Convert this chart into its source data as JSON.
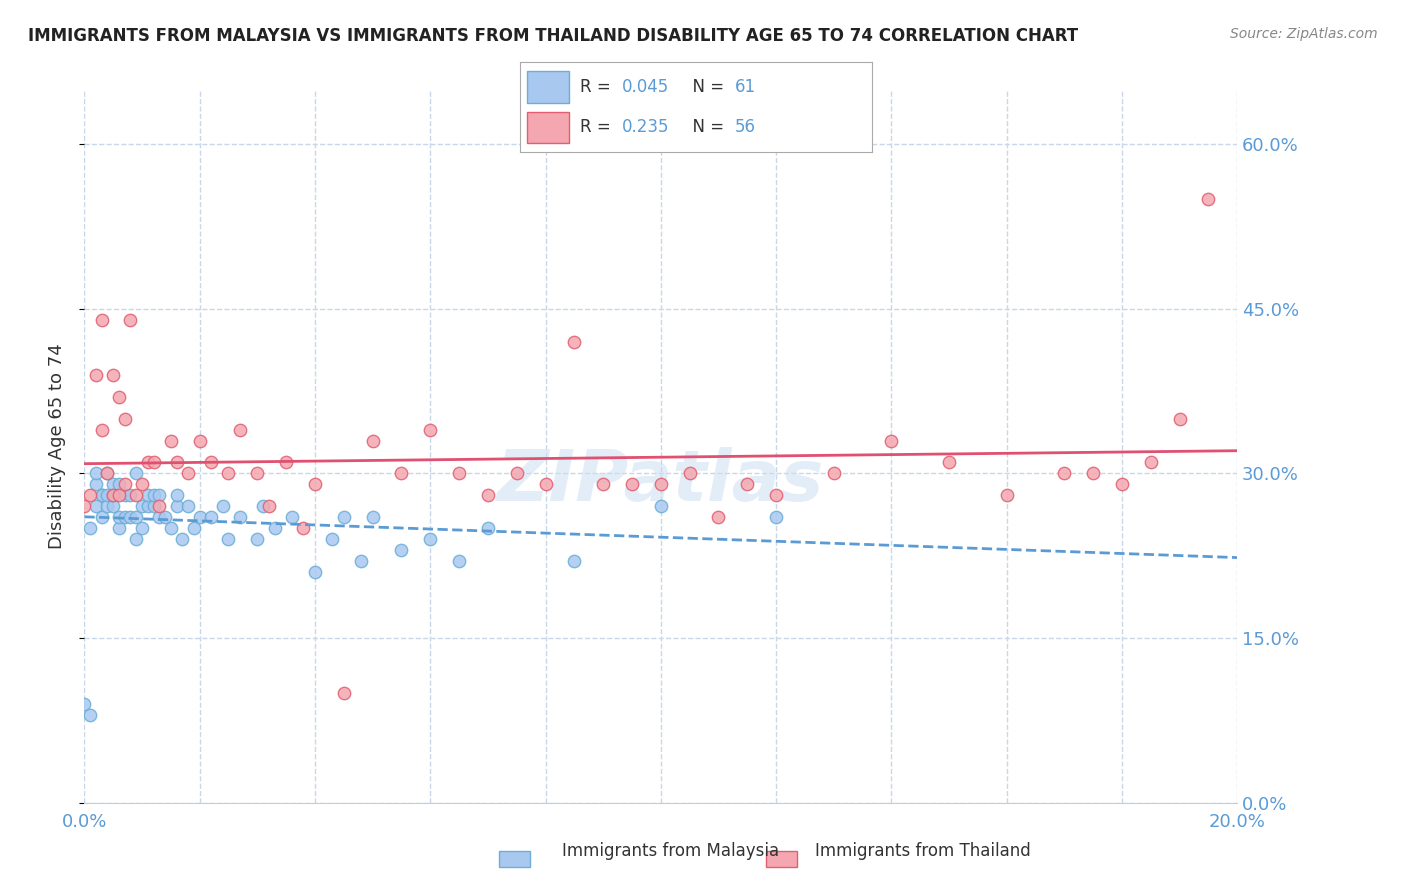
{
  "title": "IMMIGRANTS FROM MALAYSIA VS IMMIGRANTS FROM THAILAND DISABILITY AGE 65 TO 74 CORRELATION CHART",
  "source": "Source: ZipAtlas.com",
  "ylabel": "Disability Age 65 to 74",
  "xlim": [
    0.0,
    0.2
  ],
  "ylim": [
    0.0,
    0.65
  ],
  "xticks": [
    0.0,
    0.02,
    0.04,
    0.06,
    0.08,
    0.1,
    0.12,
    0.14,
    0.16,
    0.18,
    0.2
  ],
  "yticks": [
    0.0,
    0.15,
    0.3,
    0.45,
    0.6
  ],
  "malaysia_color": "#a8c8f0",
  "malaysia_edge": "#6baed6",
  "thailand_color": "#f4a7b0",
  "thailand_edge": "#e06070",
  "malaysia_R": 0.045,
  "malaysia_N": 61,
  "thailand_R": 0.235,
  "thailand_N": 56,
  "trend_malaysia_color": "#5b9bd5",
  "trend_thailand_color": "#e05070",
  "background_color": "#ffffff",
  "grid_color": "#c8d8e8",
  "tick_label_color": "#5b9bd5",
  "malaysia_scatter_x": [
    0.0,
    0.001,
    0.001,
    0.002,
    0.002,
    0.002,
    0.003,
    0.003,
    0.003,
    0.004,
    0.004,
    0.004,
    0.005,
    0.005,
    0.005,
    0.006,
    0.006,
    0.006,
    0.007,
    0.007,
    0.008,
    0.008,
    0.009,
    0.009,
    0.009,
    0.01,
    0.01,
    0.011,
    0.011,
    0.012,
    0.012,
    0.013,
    0.013,
    0.014,
    0.015,
    0.016,
    0.016,
    0.017,
    0.018,
    0.019,
    0.02,
    0.022,
    0.024,
    0.025,
    0.027,
    0.03,
    0.031,
    0.033,
    0.036,
    0.04,
    0.043,
    0.045,
    0.048,
    0.05,
    0.055,
    0.06,
    0.065,
    0.07,
    0.085,
    0.1,
    0.12
  ],
  "malaysia_scatter_y": [
    0.09,
    0.08,
    0.25,
    0.27,
    0.29,
    0.3,
    0.26,
    0.28,
    0.28,
    0.27,
    0.28,
    0.3,
    0.27,
    0.28,
    0.29,
    0.25,
    0.26,
    0.29,
    0.26,
    0.28,
    0.26,
    0.28,
    0.24,
    0.26,
    0.3,
    0.25,
    0.27,
    0.27,
    0.28,
    0.27,
    0.28,
    0.26,
    0.28,
    0.26,
    0.25,
    0.27,
    0.28,
    0.24,
    0.27,
    0.25,
    0.26,
    0.26,
    0.27,
    0.24,
    0.26,
    0.24,
    0.27,
    0.25,
    0.26,
    0.21,
    0.24,
    0.26,
    0.22,
    0.26,
    0.23,
    0.24,
    0.22,
    0.25,
    0.22,
    0.27,
    0.26
  ],
  "thailand_scatter_x": [
    0.0,
    0.001,
    0.002,
    0.003,
    0.003,
    0.004,
    0.005,
    0.005,
    0.006,
    0.006,
    0.007,
    0.007,
    0.008,
    0.009,
    0.01,
    0.011,
    0.012,
    0.013,
    0.015,
    0.016,
    0.018,
    0.02,
    0.022,
    0.025,
    0.027,
    0.03,
    0.032,
    0.035,
    0.038,
    0.04,
    0.045,
    0.05,
    0.055,
    0.06,
    0.065,
    0.07,
    0.075,
    0.08,
    0.085,
    0.09,
    0.095,
    0.1,
    0.105,
    0.11,
    0.115,
    0.12,
    0.13,
    0.14,
    0.15,
    0.16,
    0.17,
    0.175,
    0.18,
    0.185,
    0.19,
    0.195
  ],
  "thailand_scatter_y": [
    0.27,
    0.28,
    0.39,
    0.34,
    0.44,
    0.3,
    0.39,
    0.28,
    0.28,
    0.37,
    0.29,
    0.35,
    0.44,
    0.28,
    0.29,
    0.31,
    0.31,
    0.27,
    0.33,
    0.31,
    0.3,
    0.33,
    0.31,
    0.3,
    0.34,
    0.3,
    0.27,
    0.31,
    0.25,
    0.29,
    0.1,
    0.33,
    0.3,
    0.34,
    0.3,
    0.28,
    0.3,
    0.29,
    0.42,
    0.29,
    0.29,
    0.29,
    0.3,
    0.26,
    0.29,
    0.28,
    0.3,
    0.33,
    0.31,
    0.28,
    0.3,
    0.3,
    0.29,
    0.31,
    0.35,
    0.55
  ]
}
